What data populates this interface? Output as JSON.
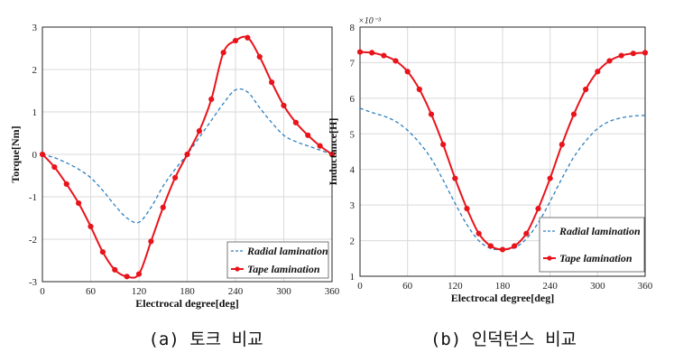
{
  "colors": {
    "radial": "#2e7fbf",
    "tape": "#e8141b",
    "grid": "#d9d9d9",
    "axis": "#262626"
  },
  "chart_data": [
    {
      "type": "line",
      "caption": "(a) 토크 비교",
      "xlabel": "Electrocal degree[deg]",
      "ylabel": "Torque[Nm]",
      "xlim": [
        0,
        360
      ],
      "ylim": [
        -3,
        3
      ],
      "xticks": [
        "0",
        "60",
        "120",
        "180",
        "240",
        "300",
        "360"
      ],
      "yticks": [
        "-3",
        "-2",
        "-1",
        "0",
        "1",
        "2",
        "3"
      ],
      "grid": true,
      "legend_position": "bottom-right",
      "x": [
        0,
        15,
        30,
        45,
        60,
        75,
        90,
        105,
        120,
        135,
        150,
        165,
        180,
        195,
        210,
        225,
        240,
        255,
        270,
        285,
        300,
        315,
        330,
        345,
        360
      ],
      "series": [
        {
          "name": "Radial lamination",
          "style": "dashed",
          "values": [
            0,
            -0.08,
            -0.2,
            -0.35,
            -0.55,
            -0.85,
            -1.2,
            -1.5,
            -1.6,
            -1.25,
            -0.75,
            -0.35,
            0,
            0.4,
            0.8,
            1.2,
            1.52,
            1.47,
            1.1,
            0.75,
            0.45,
            0.3,
            0.2,
            0.1,
            0
          ]
        },
        {
          "name": "Tape lamination",
          "style": "solid-markers",
          "values": [
            0,
            -0.3,
            -0.7,
            -1.15,
            -1.7,
            -2.3,
            -2.72,
            -2.88,
            -2.82,
            -2.05,
            -1.25,
            -0.55,
            0,
            0.55,
            1.3,
            2.4,
            2.68,
            2.75,
            2.3,
            1.7,
            1.15,
            0.75,
            0.45,
            0.2,
            0
          ]
        }
      ]
    },
    {
      "type": "line",
      "caption": "(b) 인덕턴스 비교",
      "xlabel": "Electrocal degree[deg]",
      "ylabel": "Inductance[H]",
      "scale_label": "×10⁻³",
      "xlim": [
        0,
        360
      ],
      "ylim": [
        1,
        8
      ],
      "xticks": [
        "0",
        "60",
        "120",
        "180",
        "240",
        "300",
        "360"
      ],
      "yticks": [
        "1",
        "2",
        "3",
        "4",
        "5",
        "6",
        "7",
        "8"
      ],
      "grid": true,
      "legend_position": "bottom-right",
      "x": [
        0,
        15,
        30,
        45,
        60,
        75,
        90,
        105,
        120,
        135,
        150,
        165,
        180,
        195,
        210,
        225,
        240,
        255,
        270,
        285,
        300,
        315,
        330,
        345,
        360
      ],
      "series": [
        {
          "name": "Radial lamination",
          "style": "dashed",
          "values": [
            5.72,
            5.6,
            5.5,
            5.35,
            5.1,
            4.75,
            4.3,
            3.7,
            3.05,
            2.45,
            2.0,
            1.78,
            1.75,
            1.8,
            2.05,
            2.5,
            3.1,
            3.75,
            4.35,
            4.8,
            5.15,
            5.35,
            5.45,
            5.5,
            5.52
          ]
        },
        {
          "name": "Tape lamination",
          "style": "solid-markers",
          "values": [
            7.3,
            7.28,
            7.2,
            7.05,
            6.75,
            6.25,
            5.55,
            4.7,
            3.75,
            2.9,
            2.2,
            1.85,
            1.75,
            1.85,
            2.2,
            2.9,
            3.75,
            4.7,
            5.55,
            6.25,
            6.75,
            7.05,
            7.2,
            7.26,
            7.28
          ]
        }
      ]
    }
  ]
}
